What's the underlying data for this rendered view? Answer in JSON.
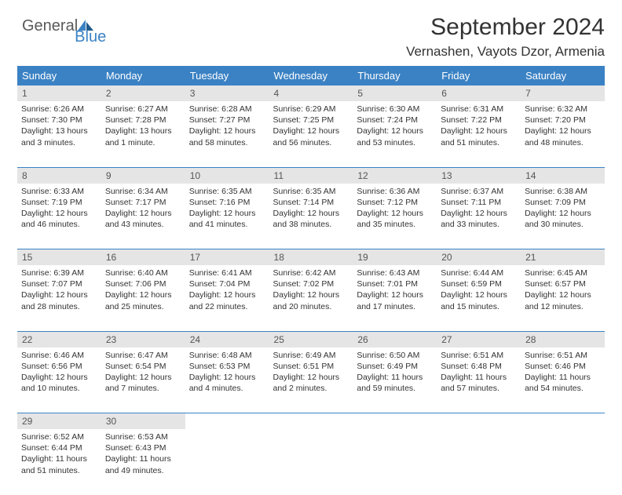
{
  "brand": {
    "word1": "General",
    "word2": "Blue"
  },
  "title": "September 2024",
  "location": "Vernashen, Vayots Dzor, Armenia",
  "day_headers": [
    "Sunday",
    "Monday",
    "Tuesday",
    "Wednesday",
    "Thursday",
    "Friday",
    "Saturday"
  ],
  "colors": {
    "header_bg": "#3b82c4",
    "header_text": "#ffffff",
    "daynum_bg": "#e5e5e5",
    "daynum_text": "#555555",
    "body_text": "#333333",
    "week_border": "#3b82c4"
  },
  "weeks": [
    [
      {
        "n": "1",
        "sunrise": "Sunrise: 6:26 AM",
        "sunset": "Sunset: 7:30 PM",
        "daylight": "Daylight: 13 hours and 3 minutes."
      },
      {
        "n": "2",
        "sunrise": "Sunrise: 6:27 AM",
        "sunset": "Sunset: 7:28 PM",
        "daylight": "Daylight: 13 hours and 1 minute."
      },
      {
        "n": "3",
        "sunrise": "Sunrise: 6:28 AM",
        "sunset": "Sunset: 7:27 PM",
        "daylight": "Daylight: 12 hours and 58 minutes."
      },
      {
        "n": "4",
        "sunrise": "Sunrise: 6:29 AM",
        "sunset": "Sunset: 7:25 PM",
        "daylight": "Daylight: 12 hours and 56 minutes."
      },
      {
        "n": "5",
        "sunrise": "Sunrise: 6:30 AM",
        "sunset": "Sunset: 7:24 PM",
        "daylight": "Daylight: 12 hours and 53 minutes."
      },
      {
        "n": "6",
        "sunrise": "Sunrise: 6:31 AM",
        "sunset": "Sunset: 7:22 PM",
        "daylight": "Daylight: 12 hours and 51 minutes."
      },
      {
        "n": "7",
        "sunrise": "Sunrise: 6:32 AM",
        "sunset": "Sunset: 7:20 PM",
        "daylight": "Daylight: 12 hours and 48 minutes."
      }
    ],
    [
      {
        "n": "8",
        "sunrise": "Sunrise: 6:33 AM",
        "sunset": "Sunset: 7:19 PM",
        "daylight": "Daylight: 12 hours and 46 minutes."
      },
      {
        "n": "9",
        "sunrise": "Sunrise: 6:34 AM",
        "sunset": "Sunset: 7:17 PM",
        "daylight": "Daylight: 12 hours and 43 minutes."
      },
      {
        "n": "10",
        "sunrise": "Sunrise: 6:35 AM",
        "sunset": "Sunset: 7:16 PM",
        "daylight": "Daylight: 12 hours and 41 minutes."
      },
      {
        "n": "11",
        "sunrise": "Sunrise: 6:35 AM",
        "sunset": "Sunset: 7:14 PM",
        "daylight": "Daylight: 12 hours and 38 minutes."
      },
      {
        "n": "12",
        "sunrise": "Sunrise: 6:36 AM",
        "sunset": "Sunset: 7:12 PM",
        "daylight": "Daylight: 12 hours and 35 minutes."
      },
      {
        "n": "13",
        "sunrise": "Sunrise: 6:37 AM",
        "sunset": "Sunset: 7:11 PM",
        "daylight": "Daylight: 12 hours and 33 minutes."
      },
      {
        "n": "14",
        "sunrise": "Sunrise: 6:38 AM",
        "sunset": "Sunset: 7:09 PM",
        "daylight": "Daylight: 12 hours and 30 minutes."
      }
    ],
    [
      {
        "n": "15",
        "sunrise": "Sunrise: 6:39 AM",
        "sunset": "Sunset: 7:07 PM",
        "daylight": "Daylight: 12 hours and 28 minutes."
      },
      {
        "n": "16",
        "sunrise": "Sunrise: 6:40 AM",
        "sunset": "Sunset: 7:06 PM",
        "daylight": "Daylight: 12 hours and 25 minutes."
      },
      {
        "n": "17",
        "sunrise": "Sunrise: 6:41 AM",
        "sunset": "Sunset: 7:04 PM",
        "daylight": "Daylight: 12 hours and 22 minutes."
      },
      {
        "n": "18",
        "sunrise": "Sunrise: 6:42 AM",
        "sunset": "Sunset: 7:02 PM",
        "daylight": "Daylight: 12 hours and 20 minutes."
      },
      {
        "n": "19",
        "sunrise": "Sunrise: 6:43 AM",
        "sunset": "Sunset: 7:01 PM",
        "daylight": "Daylight: 12 hours and 17 minutes."
      },
      {
        "n": "20",
        "sunrise": "Sunrise: 6:44 AM",
        "sunset": "Sunset: 6:59 PM",
        "daylight": "Daylight: 12 hours and 15 minutes."
      },
      {
        "n": "21",
        "sunrise": "Sunrise: 6:45 AM",
        "sunset": "Sunset: 6:57 PM",
        "daylight": "Daylight: 12 hours and 12 minutes."
      }
    ],
    [
      {
        "n": "22",
        "sunrise": "Sunrise: 6:46 AM",
        "sunset": "Sunset: 6:56 PM",
        "daylight": "Daylight: 12 hours and 10 minutes."
      },
      {
        "n": "23",
        "sunrise": "Sunrise: 6:47 AM",
        "sunset": "Sunset: 6:54 PM",
        "daylight": "Daylight: 12 hours and 7 minutes."
      },
      {
        "n": "24",
        "sunrise": "Sunrise: 6:48 AM",
        "sunset": "Sunset: 6:53 PM",
        "daylight": "Daylight: 12 hours and 4 minutes."
      },
      {
        "n": "25",
        "sunrise": "Sunrise: 6:49 AM",
        "sunset": "Sunset: 6:51 PM",
        "daylight": "Daylight: 12 hours and 2 minutes."
      },
      {
        "n": "26",
        "sunrise": "Sunrise: 6:50 AM",
        "sunset": "Sunset: 6:49 PM",
        "daylight": "Daylight: 11 hours and 59 minutes."
      },
      {
        "n": "27",
        "sunrise": "Sunrise: 6:51 AM",
        "sunset": "Sunset: 6:48 PM",
        "daylight": "Daylight: 11 hours and 57 minutes."
      },
      {
        "n": "28",
        "sunrise": "Sunrise: 6:51 AM",
        "sunset": "Sunset: 6:46 PM",
        "daylight": "Daylight: 11 hours and 54 minutes."
      }
    ],
    [
      {
        "n": "29",
        "sunrise": "Sunrise: 6:52 AM",
        "sunset": "Sunset: 6:44 PM",
        "daylight": "Daylight: 11 hours and 51 minutes."
      },
      {
        "n": "30",
        "sunrise": "Sunrise: 6:53 AM",
        "sunset": "Sunset: 6:43 PM",
        "daylight": "Daylight: 11 hours and 49 minutes."
      },
      null,
      null,
      null,
      null,
      null
    ]
  ]
}
